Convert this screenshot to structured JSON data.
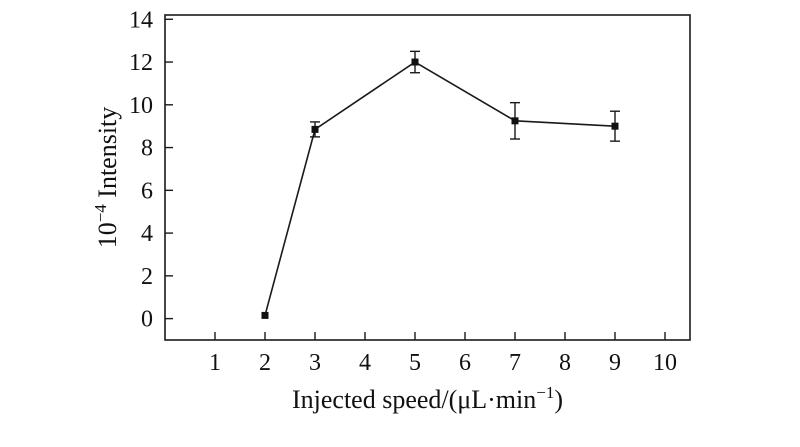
{
  "figure": {
    "background": "#ffffff",
    "line_color": "#1a1a1a",
    "marker_color": "#111111",
    "axis_color": "#1a1a1a"
  },
  "chart_data": {
    "type": "line",
    "title": "",
    "xlabel": "Injected speed/(μL·min⁻¹)",
    "ylabel": "10⁻⁴ Intensity",
    "xlabel_parts": {
      "pre": "Injected speed/(μL·min",
      "sup": "−1",
      "post": ")"
    },
    "ylabel_parts": {
      "base": "10",
      "sup": "−4",
      "rest": " Intensity"
    },
    "x": [
      2,
      3,
      5,
      7,
      9
    ],
    "y": [
      0.15,
      8.85,
      12.0,
      9.25,
      9.0
    ],
    "yerr": [
      0,
      0.35,
      0.5,
      0.85,
      0.7
    ],
    "marker": "square",
    "xlim": [
      0,
      10.5
    ],
    "ylim": [
      -1,
      14.2
    ],
    "xticks": [
      1,
      2,
      3,
      4,
      5,
      6,
      7,
      8,
      9,
      10
    ],
    "yticks": [
      0,
      2,
      4,
      6,
      8,
      10,
      12,
      14
    ],
    "grid": false,
    "legend": null,
    "box": true,
    "tick_direction": "in"
  }
}
